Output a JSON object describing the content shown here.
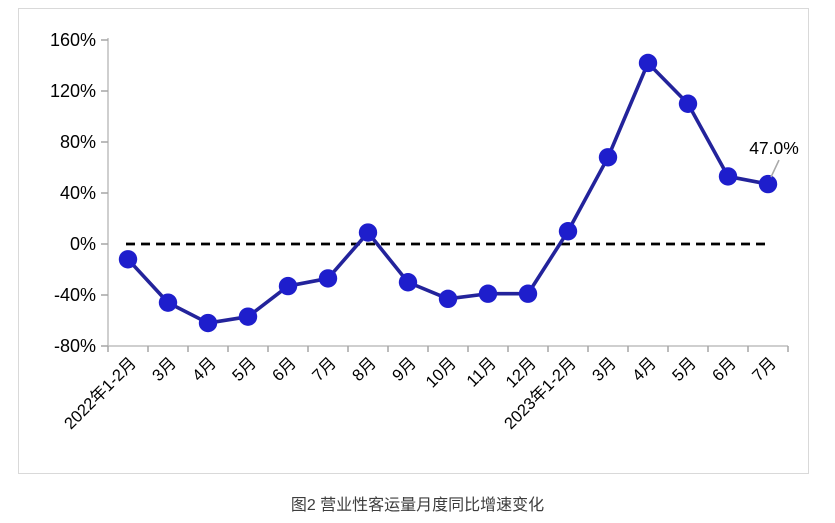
{
  "figure": {
    "caption": "图2  营业性客运量月度同比增速变化"
  },
  "chart_data": {
    "type": "line",
    "title": "",
    "xlabel": "",
    "ylabel": "",
    "categories": [
      "2022年1-2月",
      "3月",
      "4月",
      "5月",
      "6月",
      "7月",
      "8月",
      "9月",
      "10月",
      "11月",
      "12月",
      "2023年1-2月",
      "3月",
      "4月",
      "5月",
      "6月",
      "7月"
    ],
    "series": [
      {
        "name": "营业性客运量月度同比增速",
        "values": [
          -12,
          -46,
          -62,
          -57,
          -33,
          -27,
          9,
          -30,
          -43,
          -39,
          -39,
          10,
          68,
          142,
          110,
          53,
          47
        ]
      }
    ],
    "y_ticks": [
      160,
      120,
      80,
      40,
      0,
      -40,
      -80
    ],
    "y_tick_labels": [
      "160%",
      "120%",
      "80%",
      "40%",
      "0%",
      "-40%",
      "-80%"
    ],
    "ylim": [
      -80,
      160
    ],
    "grid": "off",
    "legend_position": "none",
    "zero_baseline_dashed": true,
    "annotation": {
      "text": "47.0%",
      "target_category": "2023年7月",
      "value": 47.0
    },
    "colors": {
      "line": "#23239B",
      "marker": "#1E1ECC",
      "dashed_baseline": "#000000",
      "axis": "#BFBFBF",
      "tick": "#A6A6A6",
      "text": "#000000",
      "annotation_leader": "#A9A9A9",
      "caption": "#3D3D3D",
      "figure_border": "#D9D9D9"
    }
  }
}
